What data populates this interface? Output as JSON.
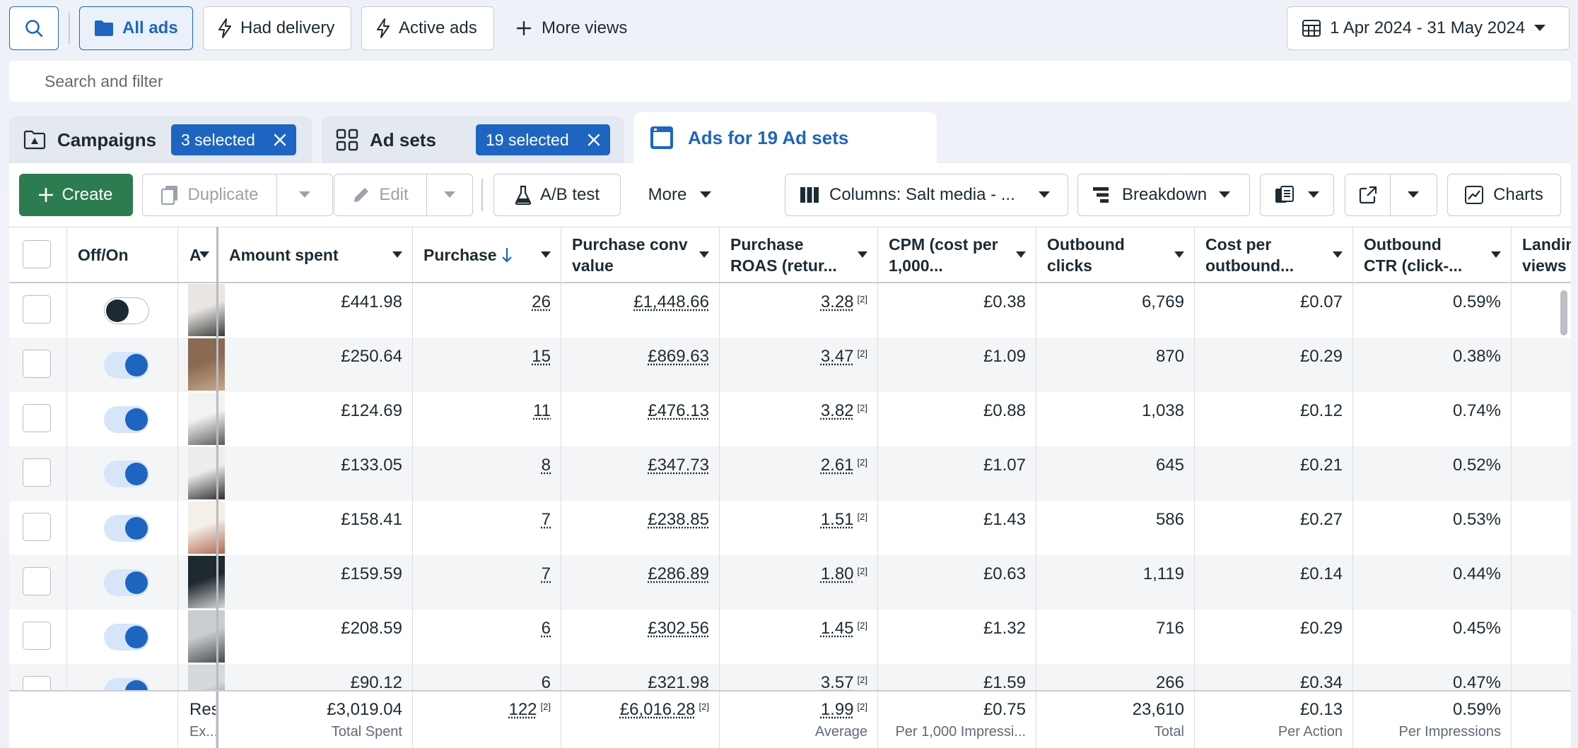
{
  "toolbar": {
    "views": {
      "all_ads": "All ads",
      "had_delivery": "Had delivery",
      "active_ads": "Active ads",
      "more_views": "More views"
    },
    "date_range": "1 Apr 2024 - 31 May 2024"
  },
  "search": {
    "placeholder": "Search and filter"
  },
  "levels": {
    "campaigns": {
      "label": "Campaigns",
      "selected": "3 selected"
    },
    "adsets": {
      "label": "Ad sets",
      "selected": "19 selected"
    },
    "ads": {
      "label": "Ads for 19 Ad sets"
    }
  },
  "actions": {
    "create": "Create",
    "duplicate": "Duplicate",
    "edit": "Edit",
    "ab_test": "A/B test",
    "more": "More",
    "columns": "Columns: Salt media - ...",
    "breakdown": "Breakdown",
    "charts": "Charts"
  },
  "table": {
    "headers": {
      "off_on": "Off/On",
      "ad": "A",
      "amount_spent": "Amount spent",
      "purchase": "Purchase",
      "purchase_conv_1": "Purchase conv",
      "purchase_conv_2": "value",
      "roas_1": "Purchase",
      "roas_2": "ROAS (retur...",
      "cpm_1": "CPM (cost per",
      "cpm_2": "1,000...",
      "outbound_1": "Outbound",
      "outbound_2": "clicks",
      "cpo_1": "Cost per",
      "cpo_2": "outbound...",
      "ctr_1": "Outbound",
      "ctr_2": "CTR (click-...",
      "landing_1": "Landin",
      "landing_2": "views"
    },
    "rows": [
      {
        "on": false,
        "spent": "£441.98",
        "purchase": "26",
        "conv": "£1,448.66",
        "roas": "3.28",
        "cpm": "£0.38",
        "clicks": "6,769",
        "cpo": "£0.07",
        "ctr": "0.59%"
      },
      {
        "on": true,
        "spent": "£250.64",
        "purchase": "15",
        "conv": "£869.63",
        "roas": "3.47",
        "cpm": "£1.09",
        "clicks": "870",
        "cpo": "£0.29",
        "ctr": "0.38%"
      },
      {
        "on": true,
        "spent": "£124.69",
        "purchase": "11",
        "conv": "£476.13",
        "roas": "3.82",
        "cpm": "£0.88",
        "clicks": "1,038",
        "cpo": "£0.12",
        "ctr": "0.74%"
      },
      {
        "on": true,
        "spent": "£133.05",
        "purchase": "8",
        "conv": "£347.73",
        "roas": "2.61",
        "cpm": "£1.07",
        "clicks": "645",
        "cpo": "£0.21",
        "ctr": "0.52%"
      },
      {
        "on": true,
        "spent": "£158.41",
        "purchase": "7",
        "conv": "£238.85",
        "roas": "1.51",
        "cpm": "£1.43",
        "clicks": "586",
        "cpo": "£0.27",
        "ctr": "0.53%"
      },
      {
        "on": true,
        "spent": "£159.59",
        "purchase": "7",
        "conv": "£286.89",
        "roas": "1.80",
        "cpm": "£0.63",
        "clicks": "1,119",
        "cpo": "£0.14",
        "ctr": "0.44%"
      },
      {
        "on": true,
        "spent": "£208.59",
        "purchase": "6",
        "conv": "£302.56",
        "roas": "1.45",
        "cpm": "£1.32",
        "clicks": "716",
        "cpo": "£0.29",
        "ctr": "0.45%"
      },
      {
        "on": true,
        "spent": "£90.12",
        "purchase": "6",
        "conv": "£321.98",
        "roas": "3.57",
        "cpm": "£1.59",
        "clicks": "266",
        "cpo": "£0.34",
        "ctr": "0.47%"
      }
    ],
    "footnote_mark": "[2]",
    "totals": {
      "label_1": "Res",
      "label_2": "Ex...",
      "spent": "£3,019.04",
      "spent_label": "Total Spent",
      "purchase": "122",
      "conv": "£6,016.28",
      "roas": "1.99",
      "roas_label": "Average",
      "cpm": "£0.75",
      "cpm_label": "Per 1,000 Impressi...",
      "clicks": "23,610",
      "clicks_label": "Total",
      "cpo": "£0.13",
      "cpo_label": "Per Action",
      "ctr": "0.59%",
      "ctr_label": "Per Impressions"
    }
  },
  "colors": {
    "accent": "#1d65c1",
    "create": "#2c7b51"
  }
}
